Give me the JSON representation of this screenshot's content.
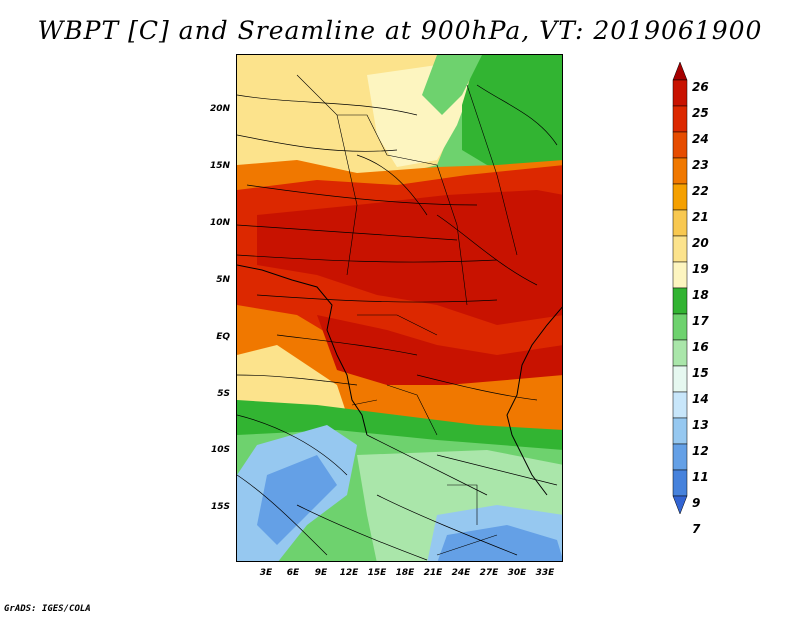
{
  "title": "WBPT [C] and Sreamline at 900hPa, VT: 2019061900",
  "credit": "GrADS: IGES/COLA",
  "lat_labels": [
    "20N",
    "15N",
    "10N",
    "5N",
    "EQ",
    "5S",
    "10S",
    "15S"
  ],
  "lon_labels": [
    "3E",
    "6E",
    "9E",
    "12E",
    "15E",
    "18E",
    "21E",
    "24E",
    "27E",
    "30E",
    "33E"
  ],
  "colorbar": {
    "labels": [
      "26",
      "25",
      "24",
      "23",
      "22",
      "21",
      "20",
      "19",
      "18",
      "17",
      "16",
      "15",
      "14",
      "13",
      "12",
      "11",
      "9",
      "7"
    ],
    "colors": [
      "#a50000",
      "#c81200",
      "#dc2800",
      "#e64c00",
      "#f07800",
      "#f5a000",
      "#f8c850",
      "#fce38c",
      "#fdf5c0",
      "#32b432",
      "#6ed26e",
      "#aae6aa",
      "#e6f8f0",
      "#c8e6fa",
      "#96c8f0",
      "#64a0e6",
      "#4682dc",
      "#3264d2"
    ]
  },
  "colors": {
    "hot": "#c81e00",
    "warm": "#f07800",
    "cool": "#32b432",
    "cold": "#64a0e6"
  }
}
